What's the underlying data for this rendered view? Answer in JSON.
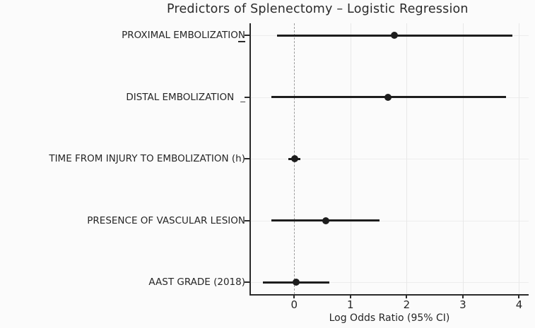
{
  "title": "Predictors of Splenectomy – Logistic Regression",
  "xlabel": "Log Odds Ratio (95% CI)",
  "colors": {
    "background": "#fbfbfb",
    "text": "#262626",
    "marker": "#1d1d1d",
    "zero_line": "#9c9c9c",
    "grid": "#e8e8e8",
    "spine": "#2a2a2a"
  },
  "chart_data": {
    "type": "scatter",
    "variant": "forest-plot",
    "title": "Predictors of Splenectomy – Logistic Regression",
    "xlabel": "Log Odds Ratio (95% CI)",
    "xticks": [
      0,
      1,
      2,
      3,
      4
    ],
    "xlim": [
      -0.77,
      4.17
    ],
    "zero_reference_line": 0,
    "grid": true,
    "rows": [
      {
        "label": "PROXIMAL EMBOLIZATION",
        "suffix": "",
        "underline_last": true,
        "estimate": 1.78,
        "ci_low": -0.3,
        "ci_high": 3.88
      },
      {
        "label": "DISTAL EMBOLIZATION",
        "suffix": "_",
        "underline_last": false,
        "estimate": 1.67,
        "ci_low": -0.4,
        "ci_high": 3.77
      },
      {
        "label": "TIME FROM INJURY TO EMBOLIZATION (h)",
        "suffix": "",
        "underline_last": false,
        "estimate": 0.01,
        "ci_low": -0.1,
        "ci_high": 0.11
      },
      {
        "label": "PRESENCE OF VASCULAR LESION",
        "suffix": "",
        "underline_last": false,
        "estimate": 0.56,
        "ci_low": -0.4,
        "ci_high": 1.52
      },
      {
        "label": "AAST GRADE (2018)",
        "suffix": "",
        "underline_last": false,
        "estimate": 0.03,
        "ci_low": -0.56,
        "ci_high": 0.63
      }
    ]
  }
}
